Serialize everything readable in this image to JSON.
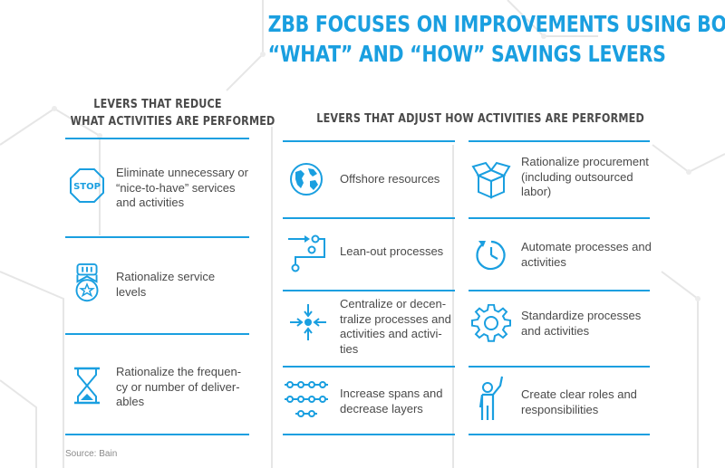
{
  "title": {
    "line1": "ZBB FOCUSES ON IMPROVEMENTS USING BOTH",
    "line2": "“WHAT” AND “HOW” SAVINGS LEVERS"
  },
  "left_column": {
    "heading_line1": "LEVERS THAT REDUCE",
    "heading_line2": "WHAT ACTIVITIES ARE PERFORMED",
    "items": [
      {
        "icon": "stop-sign-icon",
        "icon_text": "STOP",
        "lines": [
          "Eliminate unnecessary or",
          "“nice-to-have” services",
          "and activities"
        ]
      },
      {
        "icon": "medal-icon",
        "lines": [
          "Rationalize service",
          "levels"
        ]
      },
      {
        "icon": "hourglass-icon",
        "lines": [
          "Rationalize the frequen-",
          "cy or number of deliver-",
          "ables"
        ]
      }
    ]
  },
  "right_column": {
    "heading": "LEVERS THAT ADJUST HOW ACTIVITIES ARE PERFORMED",
    "items_left": [
      {
        "icon": "globe-icon",
        "lines": [
          "Offshore resources"
        ]
      },
      {
        "icon": "process-flow-icon",
        "lines": [
          "Lean-out processes"
        ]
      },
      {
        "icon": "centralize-arrows-icon",
        "lines": [
          "Centralize or decen-",
          "tralize processes and",
          "activities and activi-",
          "ties"
        ]
      },
      {
        "icon": "spans-layers-icon",
        "lines": [
          "Increase spans and",
          "decrease layers"
        ]
      }
    ],
    "items_right": [
      {
        "icon": "open-box-icon",
        "lines": [
          "Rationalize procurement",
          "(including outsourced",
          "labor)"
        ]
      },
      {
        "icon": "clock-cycle-icon",
        "lines": [
          "Automate processes and",
          "activities"
        ]
      },
      {
        "icon": "gear-icon",
        "lines": [
          "Standardize processes",
          "and activities"
        ]
      },
      {
        "icon": "person-raising-hand-icon",
        "lines": [
          "Create clear roles and",
          "responsibilities"
        ]
      }
    ]
  },
  "source": "Source: Bain",
  "colors": {
    "accent": "#1a9fe0",
    "text": "#4a4a4a",
    "bg_lines": "#e6e6e6"
  }
}
